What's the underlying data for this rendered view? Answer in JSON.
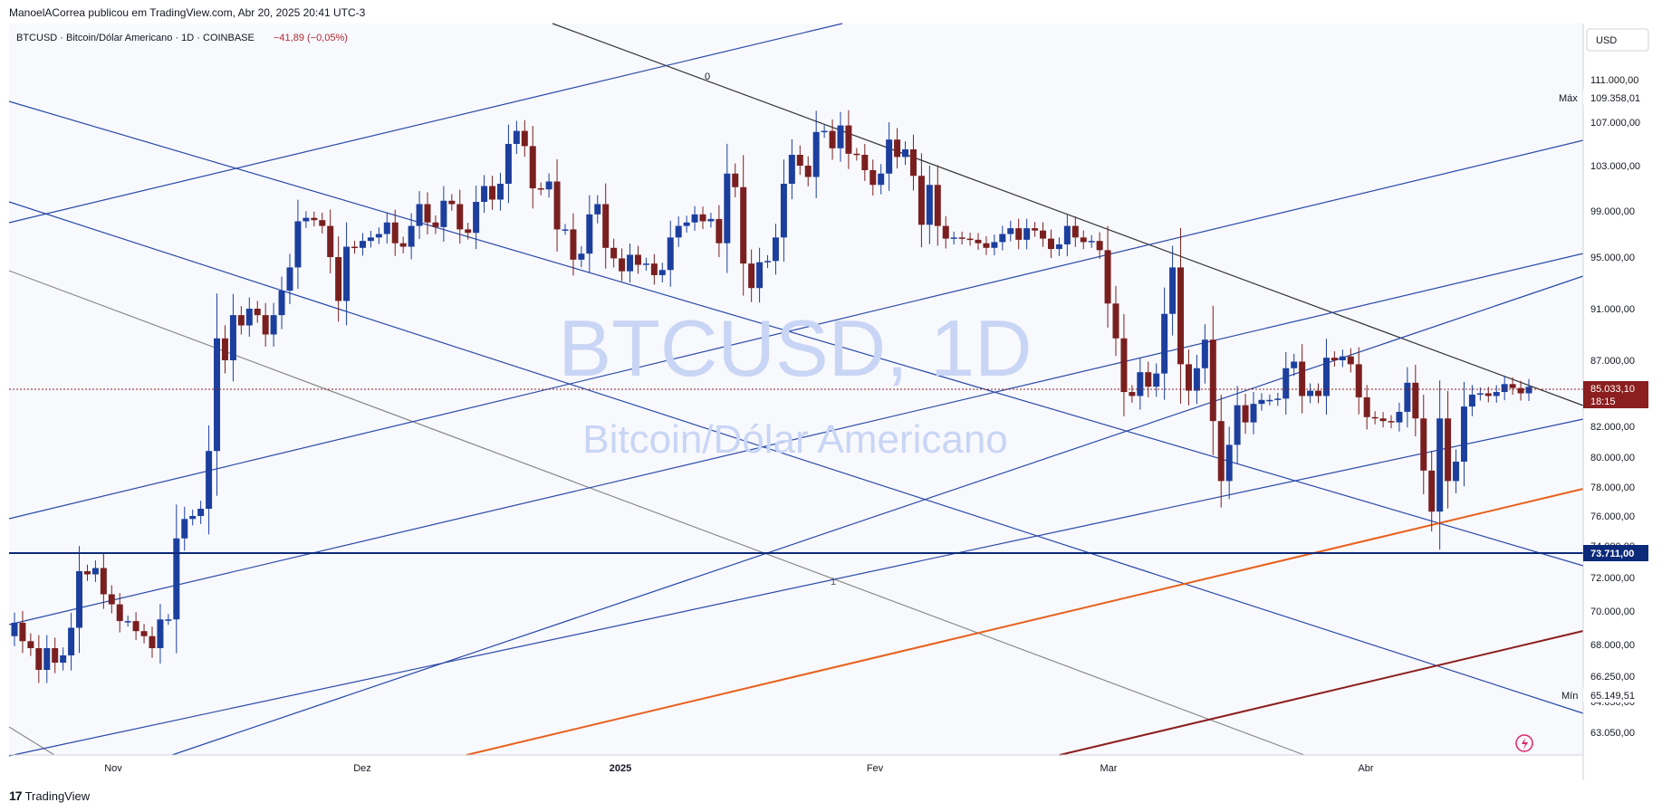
{
  "header": {
    "publish_line": "ManoelACorrea publicou em TradingView.com, Abr 20, 2025 20:41 UTC-3",
    "symbol_line": "BTCUSD · Bitcoin/Dólar Americano · 1D · COINBASE",
    "change_text": "−41,89 (−0,05%)"
  },
  "watermark": {
    "line1": "BTCUSD, 1D",
    "line2": "Bitcoin/Dólar Americano"
  },
  "footer": {
    "brand": "TradingView",
    "logo_text": "17"
  },
  "chart_data": {
    "type": "candlestick",
    "currency_label": "USD",
    "y_ticks": [
      "111.000,00",
      "107.000,00",
      "103.000,00",
      "99.000,00",
      "95.000,00",
      "91.000,00",
      "87.000,00",
      "82.000,00",
      "80.000,00",
      "78.000,00",
      "76.000,00",
      "74.000,00",
      "72.000,00",
      "70.000,00",
      "68.000,00",
      "66.250,00",
      "64.650,00",
      "63.050,00"
    ],
    "x_labels": [
      "Nov",
      "Dez",
      "2025",
      "Fev",
      "Mar",
      "Abr"
    ],
    "max_label": "Máx",
    "max_value": "109.358,01",
    "min_label": "Mín",
    "min_value": "65.149,51",
    "last_price": "85.033,10",
    "countdown": "18:15",
    "hline_value": "73.711,00",
    "fib_labels": [
      "0",
      "1"
    ],
    "candles_close": [
      69300,
      68200,
      67800,
      66600,
      67800,
      67000,
      67400,
      69000,
      72400,
      72200,
      72600,
      71000,
      70400,
      69400,
      69400,
      68800,
      68500,
      67800,
      69500,
      69500,
      74500,
      75800,
      76000,
      76500,
      80400,
      88700,
      87000,
      90500,
      89700,
      91000,
      90500,
      89000,
      90500,
      92400,
      94200,
      98100,
      98400,
      98200,
      97700,
      95000,
      91600,
      95900,
      95800,
      96400,
      96700,
      97000,
      98000,
      96200,
      95900,
      97700,
      99600,
      98000,
      97600,
      99900,
      99600,
      97400,
      97100,
      99800,
      101200,
      100000,
      101400,
      105000,
      106200,
      104800,
      101000,
      100900,
      101600,
      97400,
      97400,
      94800,
      95300,
      98700,
      99600,
      95800,
      94900,
      93900,
      95200,
      94400,
      94500,
      93600,
      94000,
      96700,
      97700,
      98000,
      98700,
      98100,
      98300,
      96200,
      102300,
      101100,
      94500,
      92600,
      94600,
      94700,
      96700,
      101400,
      104000,
      103000,
      102000,
      106100,
      106200,
      104600,
      106700,
      104100,
      104000,
      102600,
      101300,
      102300,
      105400,
      103800,
      104500,
      102100,
      97800,
      101300,
      97700,
      96600,
      96700,
      96600,
      96500,
      96200,
      95800,
      96300,
      97000,
      97500,
      96500,
      97500,
      97300,
      96600,
      95700,
      96100,
      97700,
      96700,
      96300,
      96400,
      95600,
      91400,
      88700,
      84600,
      84300,
      86100,
      85000,
      86000,
      90600,
      94200,
      86700,
      84700,
      86400,
      88600,
      82400,
      78400,
      80800,
      83600,
      82300,
      83700,
      84000,
      84000,
      84100,
      86400,
      86900,
      84300,
      84700,
      84300,
      87200,
      87000,
      87300,
      86700,
      84200,
      82700,
      82600,
      82400,
      82300,
      83100,
      85300,
      82600,
      79100,
      76300,
      82600,
      78400,
      79700,
      83500,
      84400,
      84500,
      84300,
      84600,
      85200,
      84900,
      84500,
      85000
    ],
    "candles_open": [
      68500,
      69300,
      68200,
      67800,
      66600,
      67800,
      67000,
      67400,
      69000,
      72400,
      72200,
      72600,
      71000,
      70400,
      69400,
      69400,
      68800,
      68500,
      67800,
      69500,
      69500,
      74500,
      75800,
      76000,
      76500,
      80400,
      88700,
      87000,
      90500,
      89700,
      91000,
      90500,
      89000,
      90500,
      92400,
      94200,
      98100,
      98400,
      98200,
      97700,
      95000,
      91600,
      95900,
      95800,
      96400,
      96700,
      97000,
      98000,
      96200,
      95900,
      97700,
      99600,
      98000,
      97600,
      99900,
      99600,
      97400,
      97100,
      99800,
      101200,
      100000,
      101400,
      105000,
      106200,
      104800,
      101000,
      100900,
      101600,
      97400,
      97400,
      94800,
      95300,
      98700,
      99600,
      95800,
      94900,
      93900,
      95200,
      94400,
      94500,
      93600,
      94000,
      96700,
      97700,
      98000,
      98700,
      98100,
      98300,
      96200,
      102300,
      101100,
      94500,
      92600,
      94600,
      94700,
      96700,
      101400,
      104000,
      103000,
      102000,
      106100,
      106200,
      104600,
      106700,
      104100,
      104000,
      102600,
      101300,
      102300,
      105400,
      103800,
      104500,
      102100,
      97800,
      101300,
      97700,
      96600,
      96700,
      96600,
      96500,
      96200,
      95800,
      96300,
      97000,
      97500,
      96500,
      97500,
      97300,
      96600,
      95700,
      96100,
      97700,
      96700,
      96300,
      96400,
      95600,
      91400,
      88700,
      84600,
      84300,
      86100,
      85000,
      86000,
      90600,
      94200,
      86700,
      84700,
      86400,
      88600,
      82400,
      78400,
      80800,
      83600,
      82300,
      83700,
      84000,
      84000,
      84100,
      86400,
      86900,
      84300,
      84700,
      84300,
      87200,
      87000,
      87300,
      86700,
      84200,
      82700,
      82600,
      82400,
      82300,
      83100,
      85300,
      82600,
      79100,
      76300,
      82600,
      78400,
      79700,
      83500,
      84400,
      84500,
      84300,
      84600,
      85200,
      84900,
      84500
    ]
  },
  "colors": {
    "up": "#1c3f9e",
    "down": "#7a1f1f",
    "line_blue": "#2a4aa8",
    "line_gray": "#8a8a8a",
    "line_black": "#333333",
    "line_orange": "#e8601c",
    "line_darkred": "#8b1e1e",
    "hline": "#0c2a7a",
    "watermark": "#c9d5f5",
    "last_price_bg": "#8b1e1e"
  }
}
